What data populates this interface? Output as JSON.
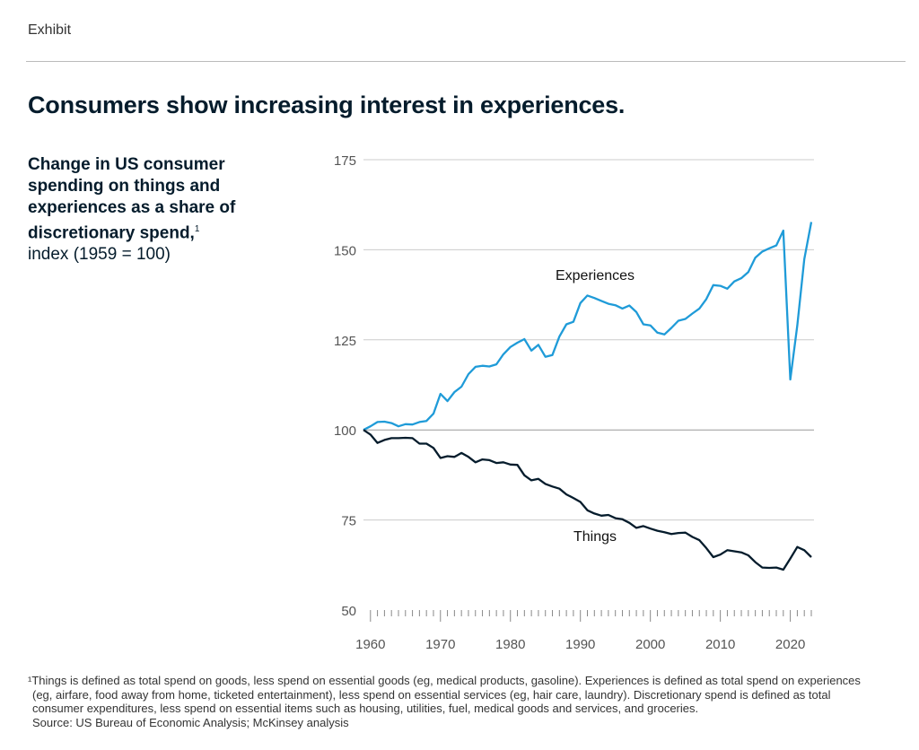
{
  "header": {
    "label": "Exhibit"
  },
  "title": "Consumers show increasing interest in experiences.",
  "subtitle": {
    "bold": "Change in US consumer spending on things and experiences as a share of discretionary spend,",
    "footnote_mark": "1",
    "normal": "index (1959 = 100)"
  },
  "chart_data": {
    "type": "line",
    "title": "",
    "xlabel": "",
    "ylabel": "",
    "x_start": 1959,
    "x_end": 2023,
    "xlim": [
      1959,
      2023
    ],
    "ylim": [
      50,
      175
    ],
    "yticks": [
      50,
      75,
      100,
      125,
      150,
      175
    ],
    "xticks": [
      1960,
      1970,
      1980,
      1990,
      2000,
      2010,
      2020
    ],
    "grid": "horizontal",
    "reference_line": 100,
    "series": [
      {
        "name": "Experiences",
        "color": "#1f9bd8",
        "values": [
          100,
          101,
          102.2,
          102.3,
          101.9,
          101,
          101.6,
          101.5,
          102.2,
          102.5,
          104.5,
          110,
          108,
          110.5,
          112,
          115.5,
          117.5,
          117.8,
          117.6,
          118.2,
          121,
          123,
          124.2,
          125.2,
          122,
          123.6,
          120.3,
          120.8,
          125.9,
          129.3,
          130,
          135.2,
          137.3,
          136.6,
          135.8,
          135,
          134.6,
          133.7,
          134.5,
          132.7,
          129.3,
          129,
          127,
          126.5,
          128.3,
          130.3,
          130.8,
          132.3,
          133.7,
          136.3,
          140.2,
          140,
          139.2,
          141.2,
          142.1,
          143.8,
          147.8,
          149.5,
          150.4,
          151.2,
          155.3,
          114,
          129,
          147.4,
          157.7
        ]
      },
      {
        "name": "Things",
        "color": "#051c2c",
        "values": [
          100,
          98.7,
          96.4,
          97.2,
          97.7,
          97.7,
          97.8,
          97.7,
          96.2,
          96.2,
          95,
          92.2,
          92.7,
          92.5,
          93.6,
          92.5,
          91,
          91.8,
          91.6,
          90.8,
          91,
          90.4,
          90.3,
          87.4,
          86,
          86.4,
          85,
          84.3,
          83.7,
          82.1,
          81.1,
          80,
          77.7,
          76.8,
          76.2,
          76.4,
          75.5,
          75.2,
          74.2,
          72.8,
          73.3,
          72.6,
          72,
          71.6,
          71.1,
          71.4,
          71.5,
          70.3,
          69.4,
          67.2,
          64.7,
          65.4,
          66.6,
          66.3,
          66,
          65.2,
          63.3,
          61.8,
          61.7,
          61.8,
          61.2,
          64.3,
          67.5,
          66.6,
          64.7
        ]
      }
    ]
  },
  "footnotes": [
    "¹Things is defined as total spend on goods, less spend on essential goods (eg, medical products, gasoline). Experiences is defined as total spend on experiences",
    "(eg, airfare, food away from home, ticketed entertainment), less spend on essential services (eg, hair care, laundry). Discretionary spend is defined as total",
    "consumer expenditures, less spend on essential items such as housing, utilities, fuel, medical goods and services, and groceries.",
    "Source: US Bureau of Economic Analysis; McKinsey analysis"
  ]
}
